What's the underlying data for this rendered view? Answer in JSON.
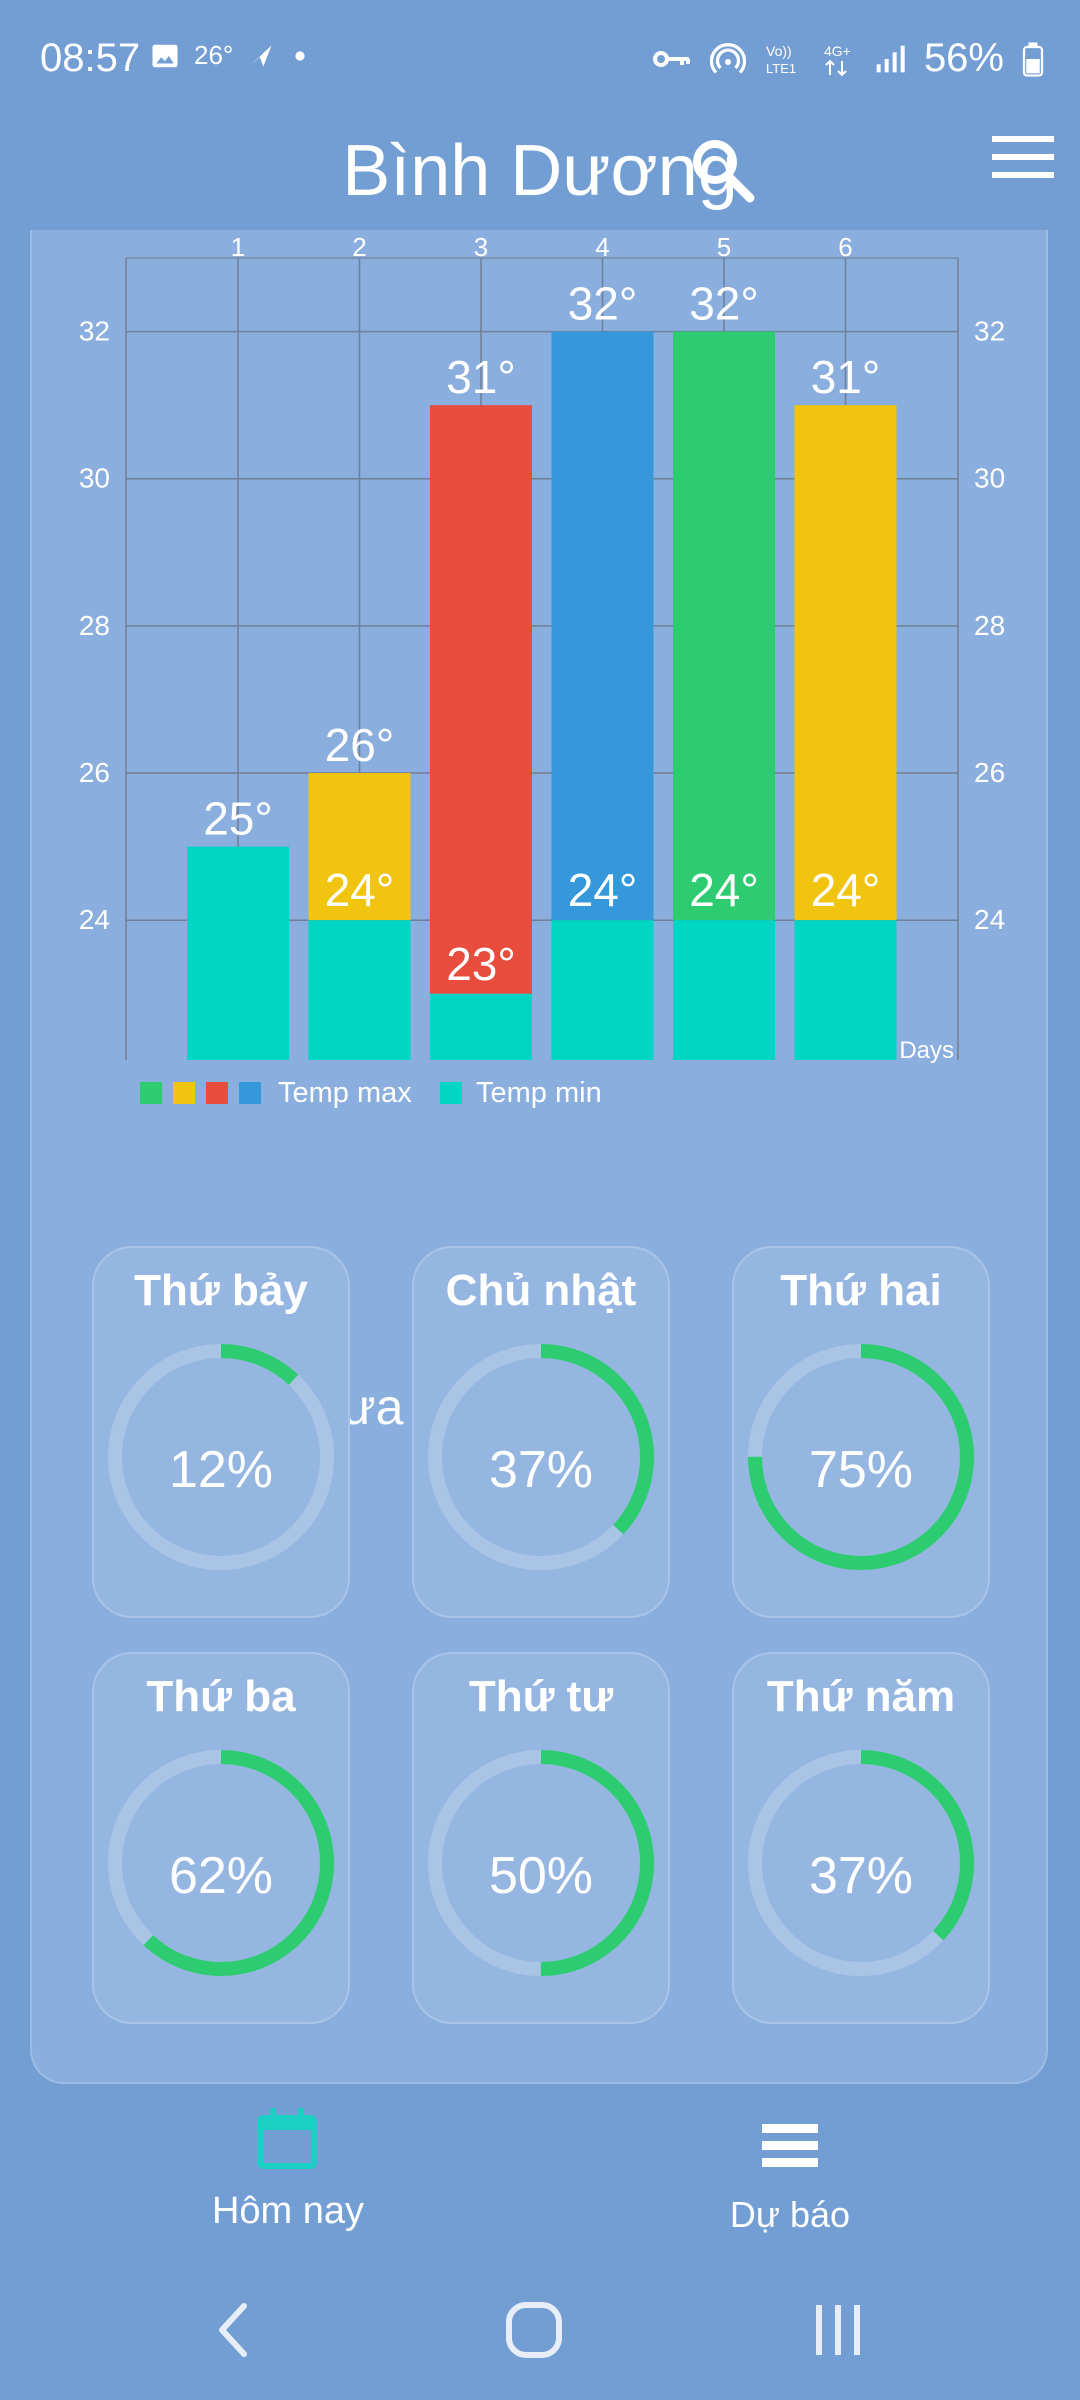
{
  "status_bar": {
    "time": "08:57",
    "temp": "26°",
    "battery": "56%",
    "icons": [
      "image-icon",
      "navigation-icon",
      "dot-icon",
      "vpn-key-icon",
      "hotspot-icon",
      "volte-icon",
      "4g-icon",
      "signal-icon",
      "battery-icon"
    ]
  },
  "header": {
    "title": "Bình Dương",
    "search_icon": "search-icon",
    "menu_icon": "menu-icon"
  },
  "colors": {
    "background": "#729ed4",
    "card": "#8aaedd",
    "temp_min": "#00d6c4",
    "accent_green": "#2ecc71",
    "ring_track": "#aac4e6"
  },
  "chart_data": {
    "type": "bar",
    "categories": [
      "1",
      "2",
      "3",
      "4",
      "5",
      "6"
    ],
    "series": [
      {
        "name": "Temp max",
        "values": [
          25,
          26,
          31,
          32,
          32,
          31
        ],
        "colors": [
          "#00d6c4",
          "#f1c40f",
          "#e74c3c",
          "#3498db",
          "#2ecc71",
          "#f1c40f"
        ]
      },
      {
        "name": "Temp min",
        "values": [
          25,
          24,
          23,
          24,
          24,
          24
        ],
        "color": "#00d6c4"
      }
    ],
    "max_labels": [
      "25°",
      "26°",
      "31°",
      "32°",
      "32°",
      "31°"
    ],
    "min_labels": [
      "",
      "24°",
      "23°",
      "24°",
      "24°",
      "24°"
    ],
    "xlabel": "Days",
    "yticks": [
      "24",
      "26",
      "28",
      "30",
      "32"
    ],
    "ylim": [
      22.1,
      33
    ],
    "grid": true,
    "legend": {
      "swatches": [
        "#2ecc71",
        "#f1c40f",
        "#e74c3c",
        "#3498db"
      ],
      "max_label": "Temp max",
      "min_label": "Temp min",
      "position": "bottom-left"
    }
  },
  "rain": {
    "title": "Xác suất mưa",
    "days": [
      {
        "day": "Thứ bảy",
        "percent": 12,
        "label": "12%"
      },
      {
        "day": "Chủ nhật",
        "percent": 37,
        "label": "37%"
      },
      {
        "day": "Thứ hai",
        "percent": 75,
        "label": "75%"
      },
      {
        "day": "Thứ ba",
        "percent": 62,
        "label": "62%"
      },
      {
        "day": "Thứ tư",
        "percent": 50,
        "label": "50%"
      },
      {
        "day": "Thứ năm",
        "percent": 37,
        "label": "37%"
      }
    ]
  },
  "bottom_nav": {
    "today": {
      "label": "Hôm nay",
      "icon": "calendar-icon"
    },
    "forecast": {
      "label": "Dự báo",
      "icon": "list-icon"
    }
  },
  "system_nav": {
    "icons": [
      "back-icon",
      "home-icon",
      "recents-icon"
    ]
  }
}
